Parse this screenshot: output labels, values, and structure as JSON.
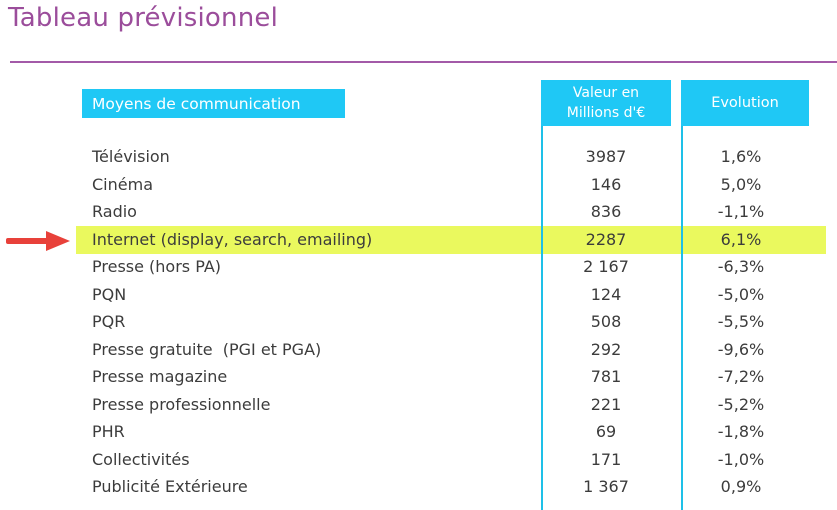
{
  "title": "Tableau prévisionnel",
  "headers": {
    "media": "Moyens de communication",
    "value_line1": "Valeur en",
    "value_line2": "Millions d'€",
    "evolution": "Evolution"
  },
  "highlight_color": "#eaf95e",
  "accent_color": "#1fc8f5",
  "title_color": "#9b4d9b",
  "arrow_icon": "red-arrow-right",
  "rows": [
    {
      "name": "Télévision",
      "value": "3987",
      "evolution": "1,6%"
    },
    {
      "name": "Cinéma",
      "value": "146",
      "evolution": "5,0%"
    },
    {
      "name": "Radio",
      "value": "836",
      "evolution": "-1,1%"
    },
    {
      "name": "Internet (display, search, emailing)",
      "value": "2287",
      "evolution": "6,1%"
    },
    {
      "name": "Presse (hors PA)",
      "value": "2 167",
      "evolution": "-6,3%"
    },
    {
      "name": "PQN",
      "value": "124",
      "evolution": "-5,0%"
    },
    {
      "name": "PQR",
      "value": "508",
      "evolution": "-5,5%"
    },
    {
      "name": "Presse gratuite  (PGI et PGA)",
      "value": "292",
      "evolution": "-9,6%"
    },
    {
      "name": "Presse magazine",
      "value": "781",
      "evolution": "-7,2%"
    },
    {
      "name": "Presse professionnelle",
      "value": "221",
      "evolution": "-5,2%"
    },
    {
      "name": "PHR",
      "value": "69",
      "evolution": "-1,8%"
    },
    {
      "name": "Collectivités",
      "value": "171",
      "evolution": "-1,0%"
    },
    {
      "name": "Publicité Extérieure",
      "value": "1 367",
      "evolution": "0,9%"
    }
  ]
}
